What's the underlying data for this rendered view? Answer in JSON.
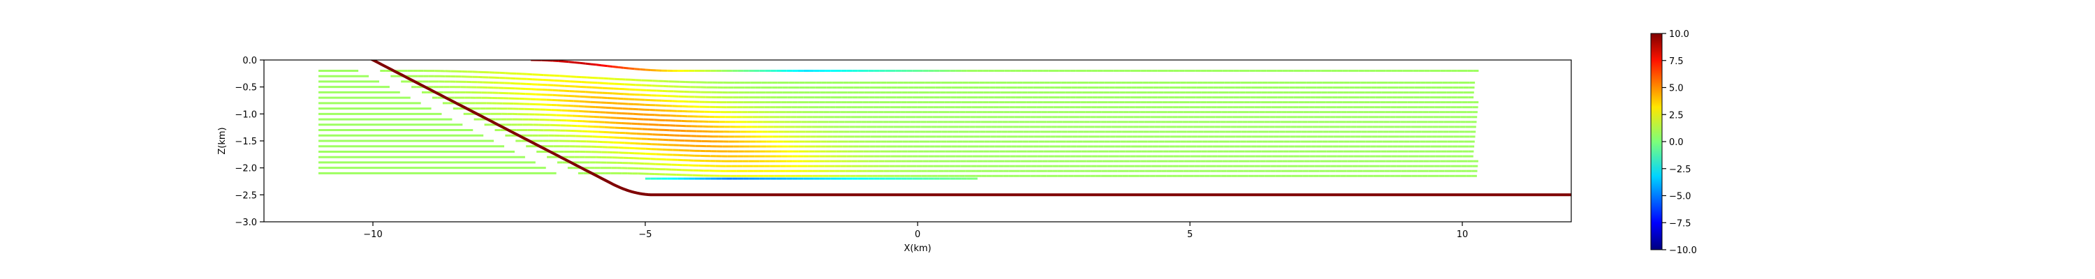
{
  "chart_data": {
    "type": "line",
    "xlabel": "X(km)",
    "ylabel": "Z(km)",
    "xlim": [
      -12,
      12
    ],
    "ylim": [
      -3.0,
      0.0
    ],
    "x_ticks": [
      -10,
      -5,
      0,
      5,
      10
    ],
    "x_tick_labels": [
      "−10",
      "−5",
      "0",
      "5",
      "10"
    ],
    "y_ticks": [
      0.0,
      -0.5,
      -1.0,
      -1.5,
      -2.0,
      -2.5,
      -3.0
    ],
    "y_tick_labels": [
      "0.0",
      "−0.5",
      "−1.0",
      "−1.5",
      "−2.0",
      "−2.5",
      "−3.0"
    ],
    "grid": false,
    "colorbar": {
      "colormap": "jet",
      "range": [
        -10.0,
        10.0
      ],
      "ticks": [
        10.0,
        7.5,
        5.0,
        2.5,
        0.0,
        -2.5,
        -5.0,
        -7.5,
        -10.0
      ],
      "tick_labels": [
        "10.0",
        "7.5",
        "5.0",
        "2.5",
        "0.0",
        "−2.5",
        "−5.0",
        "−7.5",
        "−10.0"
      ]
    },
    "fault": {
      "color": "#7f0000",
      "dip_segment": {
        "x": [
          -10.0,
          -5.6
        ],
        "z": [
          0.0,
          -2.3
        ]
      },
      "detachment_depth": -2.5,
      "x_end": 12.0
    },
    "layers": {
      "count": 20,
      "depths": [
        -0.2,
        -0.3,
        -0.4,
        -0.5,
        -0.6,
        -0.7,
        -0.8,
        -0.9,
        -1.0,
        -1.1,
        -1.2,
        -1.3,
        -1.4,
        -1.5,
        -1.6,
        -1.7,
        -1.8,
        -1.9,
        -2.0,
        -2.1
      ],
      "x_start": -11.0,
      "x_end": 10.3
    },
    "top_layer": {
      "x_start": -7.1,
      "z_start": 0.0,
      "z_end": -0.2,
      "x_flat": -4.5
    },
    "bottom_slip_layer": {
      "z": -2.2,
      "x_start": -5.0,
      "x_end": 1.0
    }
  }
}
